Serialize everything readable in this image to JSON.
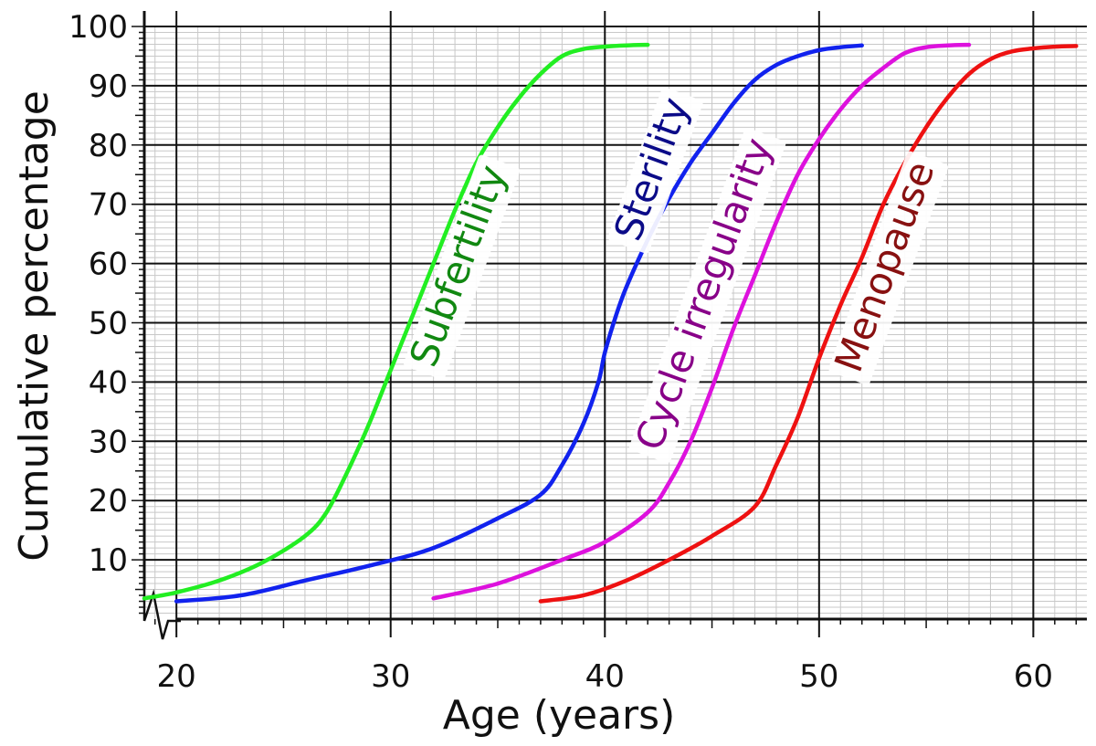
{
  "chart_data": {
    "type": "line",
    "title": "",
    "xlabel": "Age (years)",
    "ylabel": "Cumulative percentage",
    "xlim": [
      18.5,
      62.5
    ],
    "ylim": [
      0,
      100
    ],
    "x_ticks": [
      "20",
      "30",
      "40",
      "50",
      "60"
    ],
    "y_ticks": [
      "10",
      "20",
      "30",
      "40",
      "50",
      "60",
      "70",
      "80",
      "90",
      "100"
    ],
    "grid": true,
    "series": [
      {
        "name": "Subfertility",
        "color": "#22ee22",
        "label_color": "#118811",
        "x": [
          18.5,
          20,
          22,
          24,
          26,
          27,
          28,
          29,
          30,
          31,
          32,
          33,
          34,
          35,
          36,
          37,
          38,
          39,
          40,
          41,
          42
        ],
        "y": [
          3.5,
          4.5,
          6.5,
          9.5,
          14,
          18,
          25,
          33,
          42,
          51,
          60,
          69,
          77,
          83,
          88,
          92,
          95,
          96.2,
          96.6,
          96.8,
          96.9
        ]
      },
      {
        "name": "Sterility",
        "color": "#1122ee",
        "label_color": "#0b0b88",
        "x": [
          20,
          23,
          26,
          29,
          32,
          35,
          37,
          38,
          39,
          39.7,
          40,
          40.5,
          41,
          42,
          43,
          44,
          45,
          46,
          47,
          48,
          49,
          50,
          51,
          52
        ],
        "y": [
          3,
          4,
          6.5,
          9,
          12,
          17,
          21,
          26,
          33,
          40,
          45,
          51,
          56,
          64,
          71,
          77,
          82,
          87,
          91,
          93.5,
          95,
          96,
          96.5,
          96.8
        ]
      },
      {
        "name": "Cycle irregularity",
        "color": "#dd11dd",
        "label_color": "#880088",
        "x": [
          32,
          35,
          38,
          40,
          42,
          43,
          44,
          45,
          46,
          47,
          48,
          49,
          50,
          51,
          52,
          53,
          54,
          55,
          56,
          57
        ],
        "y": [
          3.5,
          6,
          10,
          13,
          18,
          23,
          30,
          39,
          49,
          58,
          67,
          75,
          81,
          86,
          90,
          93,
          95.5,
          96.5,
          96.8,
          96.9
        ]
      },
      {
        "name": "Menopause",
        "color": "#ee1111",
        "label_color": "#881111",
        "x": [
          37,
          39,
          41,
          43,
          45,
          47,
          48,
          49,
          50,
          51,
          52,
          53,
          54,
          55,
          56,
          57,
          58,
          59,
          60,
          61,
          62
        ],
        "y": [
          3,
          4,
          6.5,
          10,
          14,
          19,
          26,
          34,
          44,
          53,
          61,
          70,
          77,
          83,
          88,
          92,
          94.5,
          95.8,
          96.3,
          96.6,
          96.7
        ]
      }
    ]
  }
}
